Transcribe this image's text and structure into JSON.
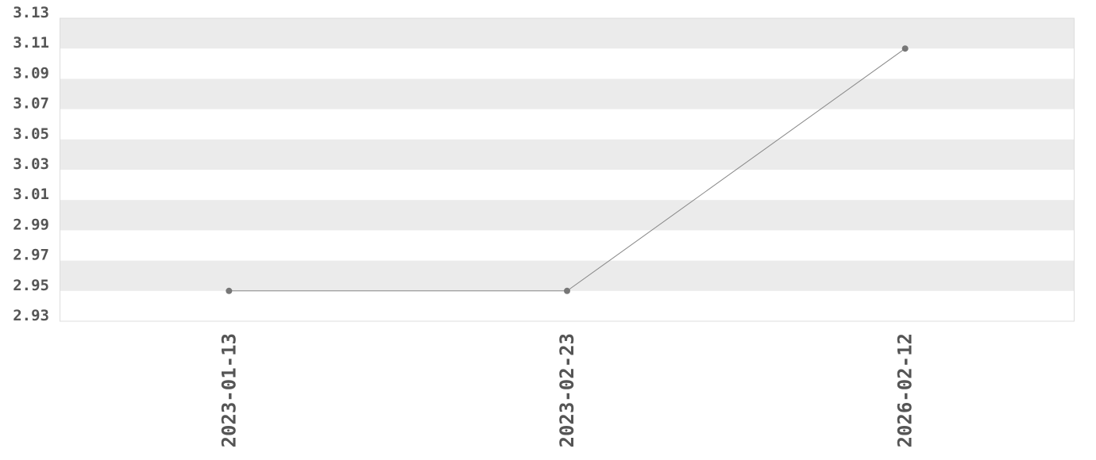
{
  "chart_data": {
    "type": "line",
    "title": "",
    "xlabel": "",
    "ylabel": "",
    "categories": [
      "2023-01-13",
      "2023-02-23",
      "2026-02-12"
    ],
    "series": [
      {
        "values": [
          2.95,
          2.95,
          3.11
        ]
      }
    ],
    "ylim": [
      2.93,
      3.13
    ],
    "yticks": [
      "3.13",
      "3.11",
      "3.09",
      "3.07",
      "3.05",
      "3.03",
      "3.01",
      "2.99",
      "2.97",
      "2.95",
      "2.93"
    ],
    "grid": "alternating horizontal bands",
    "colors": {
      "band": "#ebebeb",
      "line": "#888888",
      "point": "#777777",
      "text": "#555555",
      "border": "#dddddd"
    }
  }
}
